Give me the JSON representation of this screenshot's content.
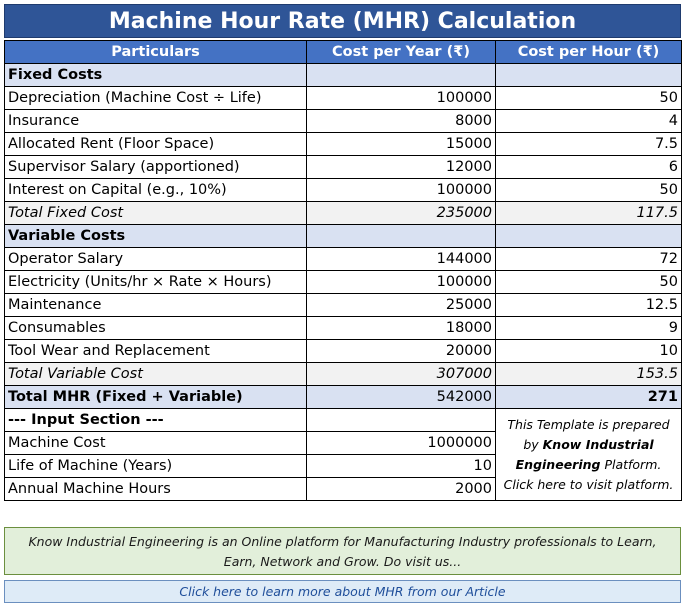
{
  "title": "Machine Hour Rate (MHR) Calculation",
  "headers": [
    "Particulars",
    "Cost per Year (₹)",
    "Cost per Hour (₹)"
  ],
  "fixed": {
    "label": "Fixed Costs",
    "rows": [
      {
        "name": "Depreciation (Machine Cost ÷ Life)",
        "year": "100000",
        "hour": "50"
      },
      {
        "name": "Insurance",
        "year": "8000",
        "hour": "4"
      },
      {
        "name": "Allocated Rent (Floor Space)",
        "year": "15000",
        "hour": "7.5"
      },
      {
        "name": "Supervisor Salary (apportioned)",
        "year": "12000",
        "hour": "6"
      },
      {
        "name": "Interest on Capital (e.g., 10%)",
        "year": "100000",
        "hour": "50"
      }
    ],
    "total": {
      "name": "Total Fixed Cost",
      "year": "235000",
      "hour": "117.5"
    }
  },
  "variable": {
    "label": "Variable Costs",
    "rows": [
      {
        "name": "Operator Salary",
        "year": "144000",
        "hour": "72"
      },
      {
        "name": "Electricity (Units/hr × Rate × Hours)",
        "year": "100000",
        "hour": "50"
      },
      {
        "name": "Maintenance",
        "year": "25000",
        "hour": "12.5"
      },
      {
        "name": "Consumables",
        "year": "18000",
        "hour": "9"
      },
      {
        "name": "Tool Wear and Replacement",
        "year": "20000",
        "hour": "10"
      }
    ],
    "total": {
      "name": "Total Variable Cost",
      "year": "307000",
      "hour": "153.5"
    }
  },
  "grand_total": {
    "name": "Total MHR (Fixed + Variable)",
    "year": "542000",
    "hour": "271"
  },
  "input": {
    "label": "--- Input Section ---",
    "rows": [
      {
        "name": "Machine Cost",
        "value": "1000000"
      },
      {
        "name": "Life of Machine (Years)",
        "value": "10"
      },
      {
        "name": "Annual Machine Hours",
        "value": "2000"
      }
    ]
  },
  "template_note": {
    "part1": "This Template is prepared by ",
    "bold": "Know Industrial Engineering",
    "part2": " Platform. Click here to visit platform."
  },
  "banner": "Know Industrial Engineering is an Online platform for Manufacturing Industry professionals to Learn, Earn, Network and Grow. Do visit us...",
  "article_link": "Click here to learn more about MHR from our Article"
}
